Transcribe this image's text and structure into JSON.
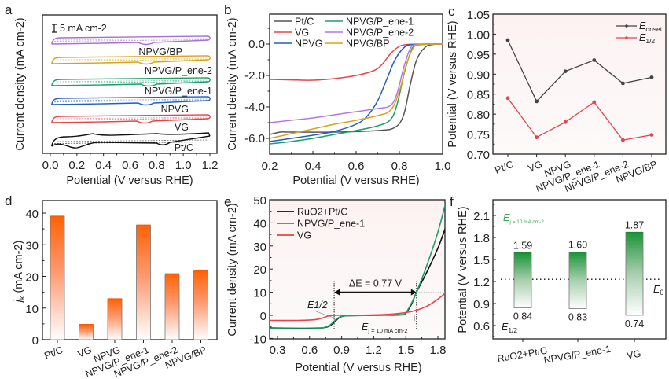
{
  "chart_data": [
    {
      "panel": "a",
      "type": "line",
      "title": "",
      "xlabel": "Potential (V versus RHE)",
      "ylabel": "Current density (mA cm-2)",
      "xlim": [
        0.0,
        1.2
      ],
      "xticks": [
        "0.0",
        "0.2",
        "0.4",
        "0.6",
        "0.8",
        "1.0",
        "1.2"
      ],
      "scale_bar": "5 mA cm-2",
      "series": [
        {
          "name": "NPVG/BP",
          "color": "#a56fd6",
          "peak_at": 0.72
        },
        {
          "name": "NPVG/P_ene-2",
          "color": "#d9a21c",
          "peak_at": 0.72
        },
        {
          "name": "NPVG/P_ene-1",
          "color": "#1e9e6a",
          "peak_at": 0.74
        },
        {
          "name": "NPVG",
          "color": "#1f5fc4",
          "peak_at": 0.72
        },
        {
          "name": "VG",
          "color": "#e5444a",
          "peak_at": 0.71
        },
        {
          "name": "Pt/C",
          "color": "#111111",
          "peak_at": 0.85
        }
      ]
    },
    {
      "panel": "b",
      "type": "line",
      "xlabel": "Potential (V versus RHE)",
      "ylabel": "Current density (mA cm-2)",
      "xlim": [
        0.2,
        1.0
      ],
      "ylim": [
        -7.0,
        1.9
      ],
      "xticks": [
        "0.2",
        "0.4",
        "0.6",
        "0.8",
        "1.0"
      ],
      "yticks": [
        "0.0",
        "-2.0",
        "-4.0",
        "-6.0"
      ],
      "legend": "top-left",
      "series": [
        {
          "name": "Pt/C",
          "color": "#555555",
          "x": [
            0.2,
            0.25,
            0.3,
            0.5,
            0.7,
            0.78,
            0.82,
            0.85,
            0.88,
            0.92,
            0.96,
            1.0
          ],
          "y": [
            -5.75,
            -5.6,
            -5.6,
            -5.6,
            -5.5,
            -5.3,
            -4.5,
            -2.6,
            -1.0,
            -0.2,
            -0.02,
            0
          ]
        },
        {
          "name": "VG",
          "color": "#e5444a",
          "x": [
            0.2,
            0.3,
            0.4,
            0.5,
            0.6,
            0.68,
            0.72,
            0.76,
            0.8,
            0.85,
            1.0
          ],
          "y": [
            -2.25,
            -2.28,
            -2.3,
            -2.2,
            -2.0,
            -1.7,
            -1.3,
            -0.6,
            -0.15,
            -0.02,
            0
          ]
        },
        {
          "name": "NPVG",
          "color": "#1f5fc4",
          "x": [
            0.2,
            0.3,
            0.4,
            0.5,
            0.6,
            0.65,
            0.7,
            0.74,
            0.78,
            0.82,
            0.86,
            1.0
          ],
          "y": [
            -6.2,
            -6.0,
            -5.8,
            -5.55,
            -5.1,
            -4.6,
            -3.6,
            -2.3,
            -1.0,
            -0.25,
            -0.03,
            0
          ]
        },
        {
          "name": "NPVG/P_ene-1",
          "color": "#1e9e6a",
          "x": [
            0.2,
            0.3,
            0.4,
            0.5,
            0.6,
            0.7,
            0.76,
            0.79,
            0.82,
            0.85,
            0.88,
            1.0
          ],
          "y": [
            -6.35,
            -6.2,
            -6.0,
            -5.75,
            -5.5,
            -5.2,
            -4.8,
            -3.8,
            -2.0,
            -0.6,
            -0.08,
            0
          ]
        },
        {
          "name": "NPVG/P_ene-2",
          "color": "#b877e0",
          "x": [
            0.2,
            0.3,
            0.4,
            0.5,
            0.6,
            0.7,
            0.76,
            0.79,
            0.82,
            0.85,
            0.88,
            1.0
          ],
          "y": [
            -5.0,
            -4.85,
            -4.7,
            -4.5,
            -4.3,
            -4.1,
            -3.9,
            -3.1,
            -1.5,
            -0.3,
            -0.03,
            0
          ]
        },
        {
          "name": "NPVG/BP",
          "color": "#d9a21c",
          "x": [
            0.2,
            0.3,
            0.4,
            0.5,
            0.6,
            0.7,
            0.76,
            0.8,
            0.83,
            0.86,
            0.89,
            1.0
          ],
          "y": [
            -6.0,
            -5.7,
            -5.4,
            -5.1,
            -4.85,
            -4.55,
            -4.2,
            -3.0,
            -1.4,
            -0.35,
            -0.04,
            0
          ]
        }
      ]
    },
    {
      "panel": "c",
      "type": "line",
      "xlabel": "",
      "ylabel": "Potential (V versus RHE)",
      "ylim": [
        0.7,
        1.05
      ],
      "yticks": [
        "1.05",
        "1.00",
        "0.95",
        "0.90",
        "0.85",
        "0.80",
        "0.75",
        "0.70"
      ],
      "categories": [
        "Pt/C",
        "VG",
        "NPVG",
        "NPVG/P_ene-1",
        "NPVG/P_ene-2",
        "NPVG/BP"
      ],
      "legend": "top-right",
      "series": [
        {
          "name": "E_onset",
          "label_main": "E",
          "label_sub": "onset",
          "color": "#444444",
          "values": [
            0.985,
            0.832,
            0.907,
            0.935,
            0.877,
            0.892
          ]
        },
        {
          "name": "E_1/2",
          "label_main": "E",
          "label_sub": "1/2",
          "color": "#e5444a",
          "values": [
            0.84,
            0.742,
            0.78,
            0.83,
            0.735,
            0.748
          ]
        }
      ]
    },
    {
      "panel": "d",
      "type": "bar",
      "xlabel": "",
      "ylabel_main": "j",
      "ylabel_sub": "k",
      "ylabel_rest": " (mA cm-2)",
      "ylim": [
        0,
        43
      ],
      "yticks": [
        "0",
        "10",
        "20",
        "30",
        "40"
      ],
      "categories": [
        "Pt/C",
        "VG",
        "NPVG",
        "NPVG/P_ene-1",
        "NPVG/P_ene-2",
        "NPVG/BP"
      ],
      "values": [
        39.0,
        4.8,
        12.9,
        36.2,
        20.8,
        21.7
      ],
      "color": "#ff6a10"
    },
    {
      "panel": "e",
      "type": "line",
      "xlabel": "Potential (V versus RHE)",
      "ylabel": "Current density (mA cm-2)",
      "xlim": [
        0.2,
        1.88
      ],
      "ylim": [
        -10,
        50
      ],
      "xticks": [
        "0.3",
        "0.6",
        "0.9",
        "1.2",
        "1.5",
        "1.8"
      ],
      "yticks": [
        "50",
        "40",
        "30",
        "20",
        "10",
        "0",
        "-10"
      ],
      "legend": "top-left",
      "annotations": {
        "delta_e": "ΔE = 0.77 V",
        "e_half": "E1/2",
        "e_j10_main": "E",
        "e_j10_sub": "j = 10 mA cm-2",
        "e_half_x": 0.83,
        "e_j10_x": 1.6
      },
      "series": [
        {
          "name": "RuO2+Pt/C",
          "color": "#111111",
          "x": [
            0.2,
            0.5,
            0.7,
            0.78,
            0.83,
            0.88,
            0.95,
            1.2,
            1.45,
            1.5,
            1.55,
            1.6,
            1.7,
            1.8,
            1.88
          ],
          "y": [
            -5.5,
            -5.6,
            -5.5,
            -4.8,
            -3.0,
            -1.0,
            -0.2,
            0,
            0.2,
            1.0,
            4.5,
            10,
            19,
            29,
            39
          ]
        },
        {
          "name": "NPVG/P_ene-1",
          "color": "#1e9e6a",
          "x": [
            0.2,
            0.5,
            0.7,
            0.78,
            0.83,
            0.88,
            0.95,
            1.2,
            1.45,
            1.5,
            1.55,
            1.6,
            1.7,
            1.8,
            1.88
          ],
          "y": [
            -5.7,
            -5.8,
            -5.6,
            -4.5,
            -2.5,
            -0.8,
            -0.2,
            0,
            0.3,
            1.2,
            5,
            10,
            22,
            36,
            50
          ]
        },
        {
          "name": "VG",
          "color": "#e5444a",
          "x": [
            0.2,
            0.5,
            0.65,
            0.72,
            0.78,
            0.85,
            1.0,
            1.3,
            1.5,
            1.6,
            1.7,
            1.8,
            1.88
          ],
          "y": [
            -2.2,
            -2.2,
            -1.9,
            -1.2,
            -0.2,
            0,
            0,
            0.3,
            1.2,
            2.2,
            4.0,
            7.0,
            10
          ]
        }
      ]
    },
    {
      "panel": "f",
      "type": "bar",
      "xlabel": "",
      "ylabel": "Potential (V versus RHE)",
      "ylim": [
        0.45,
        2.3
      ],
      "yticks": [
        "2.1",
        "1.8",
        "1.5",
        "1.2",
        "0.9",
        "0.6"
      ],
      "categories": [
        "RuO2+Pt/C",
        "NPVG/P_ene-1",
        "VG"
      ],
      "top_values": [
        1.59,
        1.6,
        1.87
      ],
      "bottom_values": [
        0.84,
        0.83,
        0.74
      ],
      "top_labels": [
        "1.59",
        "1.60",
        "1.87"
      ],
      "bottom_labels": [
        "0.84",
        "0.83",
        "0.74"
      ],
      "e0": 1.23,
      "labels": {
        "ej_main": "E",
        "ej_sub": "j = 10 mA cm-2",
        "e_half_main": "E",
        "e_half_sub": "1/2",
        "e0_main": "E",
        "e0_sub": "0"
      },
      "color": "#1e9e3a"
    }
  ],
  "panel_labels": [
    "a",
    "b",
    "c",
    "d",
    "e",
    "f"
  ]
}
